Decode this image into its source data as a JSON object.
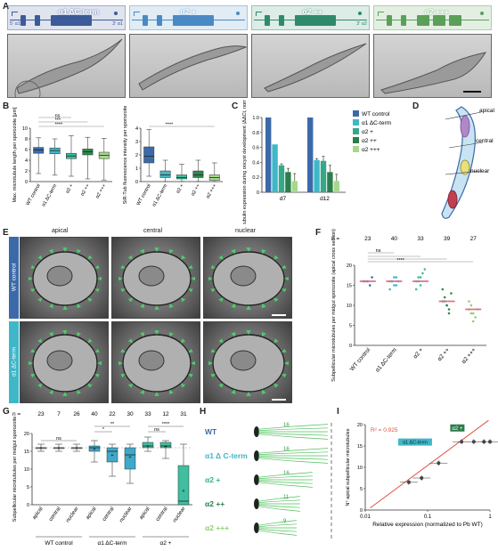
{
  "panels": {
    "A": "A",
    "B": "B",
    "C": "C",
    "D": "D",
    "E": "E",
    "F": "F",
    "G": "G",
    "H": "H",
    "I": "I"
  },
  "panelA": {
    "constructs": [
      {
        "title": "α1 ΔC-term",
        "left_label": "5' α1",
        "right_label": "3' α1",
        "color": "#3d5a99"
      },
      {
        "title": "α2 +",
        "left_label": "",
        "right_label": "",
        "color": "#4a8ac4"
      },
      {
        "title": "α2 ++",
        "left_label": "",
        "right_label": "3' α2",
        "color": "#2e8a6a"
      },
      {
        "title": "α2 +++",
        "left_label": "",
        "right_label": "",
        "color": "#5aa05a"
      }
    ]
  },
  "panelB": {
    "left_ylabel": "Max. microtubule length per sporozoite [μm]",
    "right_ylabel": "SiR-Tub fluorescence intensity per sporozoite",
    "left_yticks": [
      "0",
      "2",
      "4",
      "6",
      "8",
      "10"
    ],
    "right_yticks": [
      "0",
      "1",
      "2",
      "3",
      "4"
    ],
    "categories": [
      "WT control",
      "α1 ΔC-term",
      "α2 +",
      "α2 ++",
      "α2 +++"
    ],
    "sig_left": [
      "****",
      "***",
      "ns"
    ],
    "sig_right": [
      "****"
    ],
    "left_boxes": [
      {
        "q1": 5.3,
        "median": 5.9,
        "q3": 6.4,
        "min": 1.5,
        "max": 8.2
      },
      {
        "q1": 5.2,
        "median": 5.8,
        "q3": 6.3,
        "min": 1.2,
        "max": 8.0
      },
      {
        "q1": 4.3,
        "median": 4.8,
        "q3": 5.3,
        "min": 1.0,
        "max": 8.6
      },
      {
        "q1": 5.0,
        "median": 5.6,
        "q3": 6.1,
        "min": 0.5,
        "max": 8.3
      },
      {
        "q1": 4.3,
        "median": 4.9,
        "q3": 5.5,
        "min": 0.3,
        "max": 8.1
      }
    ],
    "right_boxes": [
      {
        "q1": 1.4,
        "median": 1.9,
        "q3": 2.6,
        "min": 0.4,
        "max": 3.9
      },
      {
        "q1": 0.3,
        "median": 0.5,
        "q3": 0.8,
        "min": 0.0,
        "max": 1.6
      },
      {
        "q1": 0.2,
        "median": 0.3,
        "q3": 0.5,
        "min": 0.0,
        "max": 1.3
      },
      {
        "q1": 0.3,
        "median": 0.5,
        "q3": 0.8,
        "min": 0.0,
        "max": 1.6
      },
      {
        "q1": 0.1,
        "median": 0.3,
        "q3": 0.5,
        "min": 0.0,
        "max": 1.4
      }
    ]
  },
  "chart_data": {
    "type": "bar",
    "ylabel": "Relative α-tubulin expression during oocyst development (ΔΔCt, normalized to Pb WT)",
    "categories": [
      "d7",
      "d12"
    ],
    "yticks": [
      "0",
      "0.2",
      "0.4",
      "0.6",
      "0.8",
      "1.0"
    ],
    "ylim": [
      0,
      1.0
    ],
    "legend_position": "right",
    "series": [
      {
        "name": "WT control",
        "color": "#3c6aa8",
        "values": [
          1.0,
          1.0
        ]
      },
      {
        "name": "α1 ΔC-term",
        "color": "#3fb7c9",
        "values": [
          0.64,
          0.43
        ]
      },
      {
        "name": "α2 +",
        "color": "#36a88a",
        "values": [
          0.36,
          0.42
        ]
      },
      {
        "name": "α2 ++",
        "color": "#2c7d4c",
        "values": [
          0.27,
          0.27
        ]
      },
      {
        "name": "α2 +++",
        "color": "#a5d88a",
        "values": [
          0.15,
          0.15
        ]
      }
    ],
    "errors": [
      [
        0,
        0
      ],
      [
        0,
        0.02
      ],
      [
        0.02,
        0.06
      ],
      [
        0.05,
        0.09
      ],
      [
        0.1,
        0.09
      ]
    ]
  },
  "panelD": {
    "labels": [
      "apical",
      "central",
      "nuclear"
    ]
  },
  "panelE": {
    "columns": [
      "apical",
      "central",
      "nuclear"
    ],
    "rows": [
      "WT control",
      "α1 ΔC-term"
    ]
  },
  "panelF": {
    "n_label": "n =",
    "n_values": [
      "23",
      "40",
      "33",
      "39",
      "27"
    ],
    "ylabel": "Subpellicular microtubules per midgut sporozoite (apical cross section)",
    "yticks": [
      "0",
      "5",
      "10",
      "15",
      "20"
    ],
    "categories": [
      "WT control",
      "α1 ΔC-term",
      "α2 +",
      "α2 ++",
      "α2 +++"
    ],
    "medians": [
      16,
      16,
      16,
      11,
      9
    ],
    "sig": [
      "ns",
      "****"
    ],
    "colors": [
      "#3c6aa8",
      "#3fb7c9",
      "#36c0a0",
      "#2c8a4c",
      "#8fd070"
    ]
  },
  "panelG": {
    "n_label": "n =",
    "n_values": [
      "23",
      "7",
      "26",
      "40",
      "22",
      "30",
      "33",
      "12",
      "31"
    ],
    "ylabel": "Subpellicular microtubules per midgut sporozoite",
    "yticks": [
      "0",
      "5",
      "10",
      "15",
      "20"
    ],
    "xlabels": [
      "apical",
      "central",
      "nuclear",
      "apical",
      "central",
      "nuclear",
      "apical",
      "central",
      "nuclear"
    ],
    "groups": [
      "WT control",
      "α1 ΔC-term",
      "α2 +"
    ],
    "sig": [
      "ns",
      "*",
      "**",
      "ns",
      "****"
    ],
    "boxes": [
      {
        "q1": 16,
        "median": 16,
        "q3": 16,
        "min": 15,
        "max": 17,
        "mean": 16,
        "fill": "#ffffff"
      },
      {
        "q1": 16,
        "median": 16,
        "q3": 16,
        "min": 15,
        "max": 17,
        "mean": 16,
        "fill": "#ffffff"
      },
      {
        "q1": 16,
        "median": 16,
        "q3": 16,
        "min": 15,
        "max": 17,
        "mean": 16,
        "fill": "#ffffff"
      },
      {
        "q1": 15,
        "median": 16,
        "q3": 16.5,
        "min": 12,
        "max": 18,
        "mean": 15.8,
        "fill": "#3fa9c9"
      },
      {
        "q1": 12,
        "median": 15,
        "q3": 16,
        "min": 8,
        "max": 17,
        "mean": 14,
        "fill": "#3fa9c9"
      },
      {
        "q1": 10,
        "median": 14,
        "q3": 16,
        "min": 6,
        "max": 17,
        "mean": 13.5,
        "fill": "#3fa9c9"
      },
      {
        "q1": 16,
        "median": 16.5,
        "q3": 17.5,
        "min": 15,
        "max": 19,
        "mean": 16.5,
        "fill": "#3fbf9f"
      },
      {
        "q1": 16,
        "median": 16.5,
        "q3": 17.5,
        "min": 13,
        "max": 18,
        "mean": 16.4,
        "fill": "#3fbf9f"
      },
      {
        "q1": 0,
        "median": 1,
        "q3": 11,
        "min": 0,
        "max": 17,
        "mean": 4,
        "fill": "#3fbf9f"
      }
    ]
  },
  "panelH": {
    "rows": [
      {
        "label": "WT",
        "count": "16",
        "color": "#3c6aa8",
        "len": 1.0
      },
      {
        "label": "α1 Δ C-term",
        "count": "16",
        "color": "#3fb7c9",
        "len": 1.0
      },
      {
        "label": "α2 +",
        "count": "16",
        "color": "#36b090",
        "len": 0.78
      },
      {
        "label": "α2 ++",
        "count": "11",
        "color": "#2c7d4c",
        "len": 0.6
      },
      {
        "label": "α2 +++",
        "count": "9",
        "color": "#8fd070",
        "len": 0.55
      }
    ]
  },
  "panelI": {
    "r2": "R² = 0.925",
    "ylabel": "N° apical subpellicular microtubules",
    "xlabel": "Relative expression (normalized to Pb WT)",
    "xticks": [
      "0.01",
      "0.1",
      "1"
    ],
    "yticks": [
      "0",
      "5",
      "10",
      "15",
      "20"
    ],
    "tag1": "α2 +",
    "tag2": "α1 ΔC-term",
    "points": [
      {
        "x": 0.05,
        "y": 6.5
      },
      {
        "x": 0.08,
        "y": 7.5
      },
      {
        "x": 0.15,
        "y": 11
      },
      {
        "x": 0.35,
        "y": 16
      },
      {
        "x": 0.55,
        "y": 16
      },
      {
        "x": 0.8,
        "y": 16
      },
      {
        "x": 1.0,
        "y": 16
      }
    ]
  }
}
